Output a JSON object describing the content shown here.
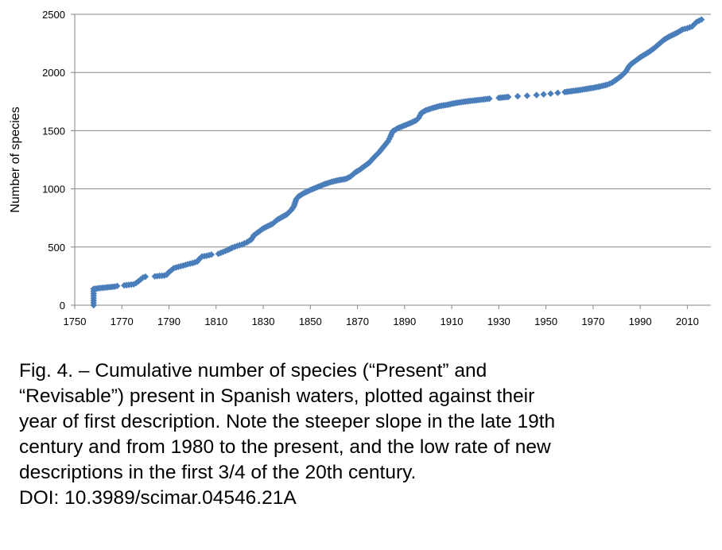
{
  "chart_data": {
    "type": "scatter",
    "ylabel": "Number of species",
    "xlabel": "",
    "xlim": [
      1750,
      2020
    ],
    "ylim": [
      0,
      2500
    ],
    "x_ticks": [
      1750,
      1770,
      1790,
      1810,
      1830,
      1850,
      1870,
      1890,
      1910,
      1930,
      1950,
      1970,
      1990,
      2010
    ],
    "y_ticks": [
      0,
      500,
      1000,
      1500,
      2000,
      2500
    ],
    "grid": "horizontal",
    "marker_color": "#4a7ebb",
    "series": [
      {
        "points": [
          [
            1758,
            0
          ],
          [
            1758,
            20
          ],
          [
            1758,
            40
          ],
          [
            1758,
            60
          ],
          [
            1758,
            80
          ],
          [
            1758,
            100
          ],
          [
            1758,
            120
          ],
          [
            1758,
            140
          ],
          [
            1761,
            148
          ],
          [
            1767,
            160
          ],
          [
            1768,
            165
          ],
          [
            1771,
            170
          ],
          [
            1773,
            175
          ],
          [
            1775,
            180
          ],
          [
            1776,
            190
          ],
          [
            1777,
            205
          ],
          [
            1778,
            222
          ],
          [
            1779,
            238
          ],
          [
            1780,
            245
          ],
          [
            1784,
            248
          ],
          [
            1786,
            252
          ],
          [
            1788,
            255
          ],
          [
            1789,
            262
          ],
          [
            1790,
            285
          ],
          [
            1791,
            300
          ],
          [
            1792,
            318
          ],
          [
            1794,
            330
          ],
          [
            1796,
            340
          ],
          [
            1798,
            352
          ],
          [
            1800,
            362
          ],
          [
            1802,
            375
          ],
          [
            1803,
            400
          ],
          [
            1804,
            418
          ],
          [
            1806,
            425
          ],
          [
            1808,
            435
          ],
          [
            1811,
            442
          ],
          [
            1813,
            458
          ],
          [
            1815,
            475
          ],
          [
            1817,
            495
          ],
          [
            1819,
            510
          ],
          [
            1821,
            522
          ],
          [
            1823,
            540
          ],
          [
            1825,
            565
          ],
          [
            1826,
            600
          ],
          [
            1828,
            630
          ],
          [
            1830,
            660
          ],
          [
            1832,
            680
          ],
          [
            1834,
            700
          ],
          [
            1836,
            735
          ],
          [
            1838,
            758
          ],
          [
            1840,
            780
          ],
          [
            1842,
            820
          ],
          [
            1843,
            850
          ],
          [
            1844,
            910
          ],
          [
            1845,
            935
          ],
          [
            1847,
            960
          ],
          [
            1850,
            990
          ],
          [
            1853,
            1015
          ],
          [
            1856,
            1040
          ],
          [
            1859,
            1060
          ],
          [
            1862,
            1075
          ],
          [
            1865,
            1085
          ],
          [
            1867,
            1105
          ],
          [
            1869,
            1140
          ],
          [
            1871,
            1165
          ],
          [
            1873,
            1195
          ],
          [
            1875,
            1225
          ],
          [
            1877,
            1270
          ],
          [
            1879,
            1310
          ],
          [
            1881,
            1360
          ],
          [
            1883,
            1410
          ],
          [
            1884,
            1450
          ],
          [
            1885,
            1495
          ],
          [
            1887,
            1520
          ],
          [
            1890,
            1545
          ],
          [
            1893,
            1570
          ],
          [
            1895,
            1590
          ],
          [
            1896,
            1610
          ],
          [
            1897,
            1650
          ],
          [
            1899,
            1675
          ],
          [
            1902,
            1695
          ],
          [
            1905,
            1712
          ],
          [
            1908,
            1722
          ],
          [
            1911,
            1735
          ],
          [
            1915,
            1748
          ],
          [
            1918,
            1756
          ],
          [
            1922,
            1765
          ],
          [
            1926,
            1775
          ],
          [
            1930,
            1782
          ],
          [
            1934,
            1790
          ],
          [
            1938,
            1796
          ],
          [
            1942,
            1800
          ],
          [
            1946,
            1806
          ],
          [
            1949,
            1812
          ],
          [
            1952,
            1818
          ],
          [
            1955,
            1825
          ],
          [
            1958,
            1832
          ],
          [
            1961,
            1840
          ],
          [
            1964,
            1848
          ],
          [
            1967,
            1858
          ],
          [
            1970,
            1868
          ],
          [
            1973,
            1880
          ],
          [
            1976,
            1895
          ],
          [
            1978,
            1912
          ],
          [
            1980,
            1940
          ],
          [
            1982,
            1970
          ],
          [
            1984,
            2010
          ],
          [
            1985,
            2045
          ],
          [
            1986,
            2070
          ],
          [
            1988,
            2100
          ],
          [
            1990,
            2130
          ],
          [
            1992,
            2155
          ],
          [
            1994,
            2180
          ],
          [
            1996,
            2210
          ],
          [
            1998,
            2245
          ],
          [
            2000,
            2280
          ],
          [
            2002,
            2305
          ],
          [
            2004,
            2325
          ],
          [
            2006,
            2345
          ],
          [
            2008,
            2370
          ],
          [
            2010,
            2380
          ],
          [
            2012,
            2395
          ],
          [
            2013,
            2415
          ],
          [
            2014,
            2435
          ],
          [
            2015,
            2445
          ],
          [
            2016,
            2455
          ]
        ]
      }
    ]
  },
  "caption": {
    "lines": [
      "Fig. 4. – Cumulative number of species (“Present” and",
      "“Revisable”) present in Spanish waters, plotted against their",
      "year of first description. Note the steeper slope in the late 19th",
      "century and from 1980 to the present, and the low rate of new",
      "descriptions in the first 3/4 of the 20th century.",
      "DOI: 10.3989/scimar.04546.21A"
    ]
  }
}
